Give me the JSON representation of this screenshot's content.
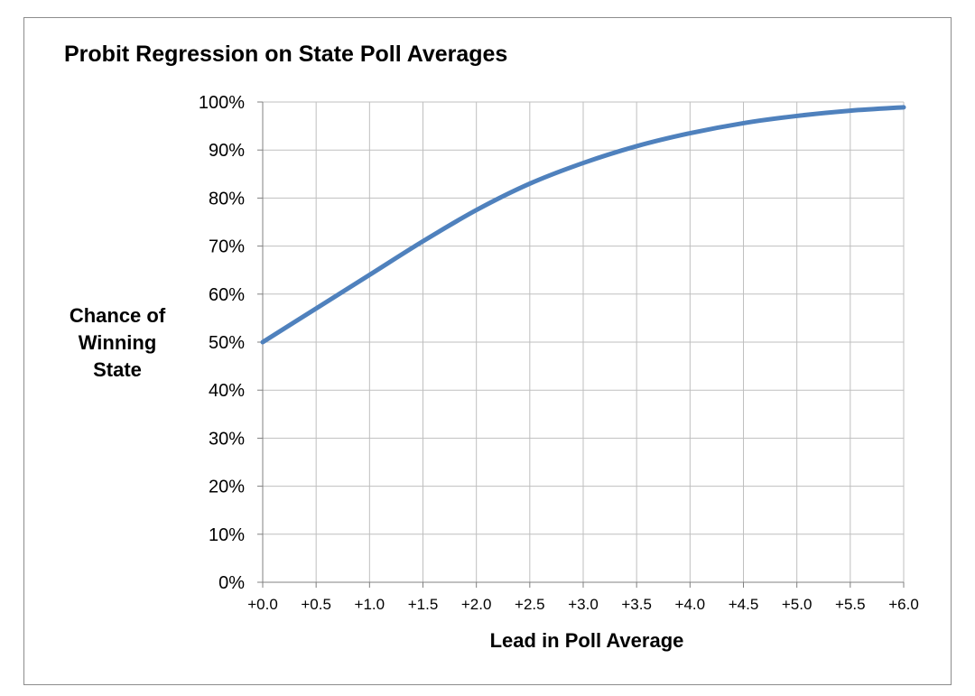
{
  "chart_data": {
    "type": "line",
    "title": "Probit Regression on State Poll Averages",
    "xlabel": "Lead in Poll Average",
    "ylabel_lines": [
      "Chance of",
      "Winning",
      "State"
    ],
    "xlim": [
      0,
      6
    ],
    "ylim": [
      0,
      1
    ],
    "grid": true,
    "x_ticks": [
      "+0.0",
      "+0.5",
      "+1.0",
      "+1.5",
      "+2.0",
      "+2.5",
      "+3.0",
      "+3.5",
      "+4.0",
      "+4.5",
      "+5.0",
      "+5.5",
      "+6.0"
    ],
    "y_ticks": [
      "0%",
      "10%",
      "20%",
      "30%",
      "40%",
      "50%",
      "60%",
      "70%",
      "80%",
      "90%",
      "100%"
    ],
    "series": [
      {
        "color": "#4f81bd",
        "x": [
          0.0,
          0.5,
          1.0,
          1.5,
          2.0,
          2.5,
          3.0,
          3.5,
          4.0,
          4.5,
          5.0,
          5.5,
          6.0
        ],
        "y": [
          0.5,
          0.57,
          0.64,
          0.71,
          0.775,
          0.83,
          0.873,
          0.908,
          0.935,
          0.956,
          0.971,
          0.982,
          0.989
        ]
      }
    ]
  }
}
